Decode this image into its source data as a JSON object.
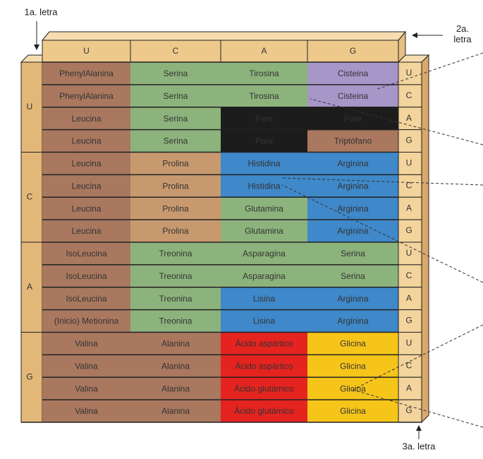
{
  "labels": {
    "first": "1a. letra",
    "second": "2a. letra",
    "third": "3a. letra"
  },
  "header": [
    "U",
    "C",
    "A",
    "G"
  ],
  "groups": [
    {
      "letter": "U",
      "rows": [
        {
          "third": "U",
          "cells": [
            {
              "text": "PhenylAlanina",
              "color": "#a9785f"
            },
            {
              "text": "Serina",
              "color": "#8db37c"
            },
            {
              "text": "Tirosina",
              "color": "#8db37c"
            },
            {
              "text": "Cisteina",
              "color": "#a796c8"
            }
          ]
        },
        {
          "third": "C",
          "cells": [
            {
              "text": "PhenylAlanina",
              "color": "#a9785f"
            },
            {
              "text": "Serina",
              "color": "#8db37c"
            },
            {
              "text": "Tirosina",
              "color": "#8db37c"
            },
            {
              "text": "Cisteina",
              "color": "#a796c8"
            }
          ]
        },
        {
          "third": "A",
          "cells": [
            {
              "text": "Leucina",
              "color": "#a9785f"
            },
            {
              "text": "Serina",
              "color": "#8db37c"
            },
            {
              "text": "Pare",
              "color": "#1c1c1c"
            },
            {
              "text": "Pare",
              "color": "#1c1c1c"
            }
          ]
        },
        {
          "third": "G",
          "cells": [
            {
              "text": "Leucina",
              "color": "#a9785f"
            },
            {
              "text": "Serina",
              "color": "#8db37c"
            },
            {
              "text": "Pare",
              "color": "#1c1c1c"
            },
            {
              "text": "Triptófano",
              "color": "#a9785f"
            }
          ]
        }
      ]
    },
    {
      "letter": "C",
      "rows": [
        {
          "third": "U",
          "cells": [
            {
              "text": "Leucina",
              "color": "#a9785f"
            },
            {
              "text": "Prolina",
              "color": "#c8996f"
            },
            {
              "text": "Histidina",
              "color": "#3f88c9"
            },
            {
              "text": "Arginina",
              "color": "#3f88c9"
            }
          ]
        },
        {
          "third": "C",
          "cells": [
            {
              "text": "Leucina",
              "color": "#a9785f"
            },
            {
              "text": "Prolina",
              "color": "#c8996f"
            },
            {
              "text": "Histidina",
              "color": "#3f88c9"
            },
            {
              "text": "Arginina",
              "color": "#3f88c9"
            }
          ]
        },
        {
          "third": "A",
          "cells": [
            {
              "text": "Leucina",
              "color": "#a9785f"
            },
            {
              "text": "Prolina",
              "color": "#c8996f"
            },
            {
              "text": "Glutamina",
              "color": "#8db37c"
            },
            {
              "text": "Arginina",
              "color": "#3f88c9"
            }
          ]
        },
        {
          "third": "G",
          "cells": [
            {
              "text": "Leucina",
              "color": "#a9785f"
            },
            {
              "text": "Prolina",
              "color": "#c8996f"
            },
            {
              "text": "Glutamina",
              "color": "#8db37c"
            },
            {
              "text": "Arginina",
              "color": "#3f88c9"
            }
          ]
        }
      ]
    },
    {
      "letter": "A",
      "rows": [
        {
          "third": "U",
          "cells": [
            {
              "text": "IsoLeucina",
              "color": "#a9785f"
            },
            {
              "text": "Treonina",
              "color": "#8db37c"
            },
            {
              "text": "Asparagina",
              "color": "#8db37c"
            },
            {
              "text": "Serina",
              "color": "#8db37c"
            }
          ]
        },
        {
          "third": "C",
          "cells": [
            {
              "text": "IsoLeucina",
              "color": "#a9785f"
            },
            {
              "text": "Treonina",
              "color": "#8db37c"
            },
            {
              "text": "Asparagina",
              "color": "#8db37c"
            },
            {
              "text": "Serina",
              "color": "#8db37c"
            }
          ]
        },
        {
          "third": "A",
          "cells": [
            {
              "text": "IsoLeucina",
              "color": "#a9785f"
            },
            {
              "text": "Treonina",
              "color": "#8db37c"
            },
            {
              "text": "Lisina",
              "color": "#3f88c9"
            },
            {
              "text": "Arginina",
              "color": "#3f88c9"
            }
          ]
        },
        {
          "third": "G",
          "cells": [
            {
              "text": "(Inicio) Metionina",
              "color": "#a9785f"
            },
            {
              "text": "Treonina",
              "color": "#8db37c"
            },
            {
              "text": "Lisina",
              "color": "#3f88c9"
            },
            {
              "text": "Arginina",
              "color": "#3f88c9"
            }
          ]
        }
      ]
    },
    {
      "letter": "G",
      "rows": [
        {
          "third": "U",
          "cells": [
            {
              "text": "Valina",
              "color": "#a9785f"
            },
            {
              "text": "Alanina",
              "color": "#a9785f"
            },
            {
              "text": "Ácido aspártico",
              "color": "#e5231f"
            },
            {
              "text": "Glicina",
              "color": "#f6c51a"
            }
          ]
        },
        {
          "third": "C",
          "cells": [
            {
              "text": "Valina",
              "color": "#a9785f"
            },
            {
              "text": "Alanina",
              "color": "#a9785f"
            },
            {
              "text": "Ácido aspártico",
              "color": "#e5231f"
            },
            {
              "text": "Glicina",
              "color": "#f6c51a"
            }
          ]
        },
        {
          "third": "A",
          "cells": [
            {
              "text": "Valina",
              "color": "#a9785f"
            },
            {
              "text": "Alanina",
              "color": "#a9785f"
            },
            {
              "text": "Ácido glutámico",
              "color": "#e5231f"
            },
            {
              "text": "Glicina",
              "color": "#f6c51a"
            }
          ]
        },
        {
          "third": "G",
          "cells": [
            {
              "text": "Valina",
              "color": "#a9785f"
            },
            {
              "text": "Alanina",
              "color": "#a9785f"
            },
            {
              "text": "Ácido glutámico",
              "color": "#e5231f"
            },
            {
              "text": "Glicina",
              "color": "#f6c51a"
            }
          ]
        }
      ]
    }
  ]
}
